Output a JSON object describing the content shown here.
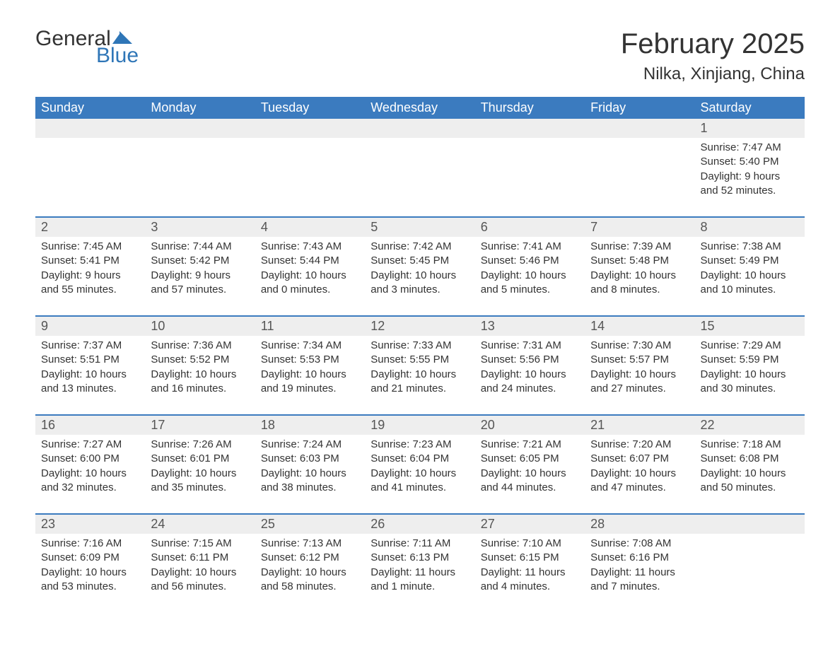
{
  "logo": {
    "text1": "General",
    "text2": "Blue",
    "flag_color": "#2f76b7"
  },
  "title": "February 2025",
  "location": "Nilka, Xinjiang, China",
  "colors": {
    "header_bg": "#3b7bbf",
    "header_text": "#ffffff",
    "daynum_bg": "#eeeeee",
    "rule": "#3b7bbf",
    "text": "#333333",
    "logo_blue": "#2f76b7"
  },
  "day_headers": [
    "Sunday",
    "Monday",
    "Tuesday",
    "Wednesday",
    "Thursday",
    "Friday",
    "Saturday"
  ],
  "weeks": [
    [
      null,
      null,
      null,
      null,
      null,
      null,
      {
        "n": "1",
        "sunrise": "7:47 AM",
        "sunset": "5:40 PM",
        "daylight": "9 hours and 52 minutes."
      }
    ],
    [
      {
        "n": "2",
        "sunrise": "7:45 AM",
        "sunset": "5:41 PM",
        "daylight": "9 hours and 55 minutes."
      },
      {
        "n": "3",
        "sunrise": "7:44 AM",
        "sunset": "5:42 PM",
        "daylight": "9 hours and 57 minutes."
      },
      {
        "n": "4",
        "sunrise": "7:43 AM",
        "sunset": "5:44 PM",
        "daylight": "10 hours and 0 minutes."
      },
      {
        "n": "5",
        "sunrise": "7:42 AM",
        "sunset": "5:45 PM",
        "daylight": "10 hours and 3 minutes."
      },
      {
        "n": "6",
        "sunrise": "7:41 AM",
        "sunset": "5:46 PM",
        "daylight": "10 hours and 5 minutes."
      },
      {
        "n": "7",
        "sunrise": "7:39 AM",
        "sunset": "5:48 PM",
        "daylight": "10 hours and 8 minutes."
      },
      {
        "n": "8",
        "sunrise": "7:38 AM",
        "sunset": "5:49 PM",
        "daylight": "10 hours and 10 minutes."
      }
    ],
    [
      {
        "n": "9",
        "sunrise": "7:37 AM",
        "sunset": "5:51 PM",
        "daylight": "10 hours and 13 minutes."
      },
      {
        "n": "10",
        "sunrise": "7:36 AM",
        "sunset": "5:52 PM",
        "daylight": "10 hours and 16 minutes."
      },
      {
        "n": "11",
        "sunrise": "7:34 AM",
        "sunset": "5:53 PM",
        "daylight": "10 hours and 19 minutes."
      },
      {
        "n": "12",
        "sunrise": "7:33 AM",
        "sunset": "5:55 PM",
        "daylight": "10 hours and 21 minutes."
      },
      {
        "n": "13",
        "sunrise": "7:31 AM",
        "sunset": "5:56 PM",
        "daylight": "10 hours and 24 minutes."
      },
      {
        "n": "14",
        "sunrise": "7:30 AM",
        "sunset": "5:57 PM",
        "daylight": "10 hours and 27 minutes."
      },
      {
        "n": "15",
        "sunrise": "7:29 AM",
        "sunset": "5:59 PM",
        "daylight": "10 hours and 30 minutes."
      }
    ],
    [
      {
        "n": "16",
        "sunrise": "7:27 AM",
        "sunset": "6:00 PM",
        "daylight": "10 hours and 32 minutes."
      },
      {
        "n": "17",
        "sunrise": "7:26 AM",
        "sunset": "6:01 PM",
        "daylight": "10 hours and 35 minutes."
      },
      {
        "n": "18",
        "sunrise": "7:24 AM",
        "sunset": "6:03 PM",
        "daylight": "10 hours and 38 minutes."
      },
      {
        "n": "19",
        "sunrise": "7:23 AM",
        "sunset": "6:04 PM",
        "daylight": "10 hours and 41 minutes."
      },
      {
        "n": "20",
        "sunrise": "7:21 AM",
        "sunset": "6:05 PM",
        "daylight": "10 hours and 44 minutes."
      },
      {
        "n": "21",
        "sunrise": "7:20 AM",
        "sunset": "6:07 PM",
        "daylight": "10 hours and 47 minutes."
      },
      {
        "n": "22",
        "sunrise": "7:18 AM",
        "sunset": "6:08 PM",
        "daylight": "10 hours and 50 minutes."
      }
    ],
    [
      {
        "n": "23",
        "sunrise": "7:16 AM",
        "sunset": "6:09 PM",
        "daylight": "10 hours and 53 minutes."
      },
      {
        "n": "24",
        "sunrise": "7:15 AM",
        "sunset": "6:11 PM",
        "daylight": "10 hours and 56 minutes."
      },
      {
        "n": "25",
        "sunrise": "7:13 AM",
        "sunset": "6:12 PM",
        "daylight": "10 hours and 58 minutes."
      },
      {
        "n": "26",
        "sunrise": "7:11 AM",
        "sunset": "6:13 PM",
        "daylight": "11 hours and 1 minute."
      },
      {
        "n": "27",
        "sunrise": "7:10 AM",
        "sunset": "6:15 PM",
        "daylight": "11 hours and 4 minutes."
      },
      {
        "n": "28",
        "sunrise": "7:08 AM",
        "sunset": "6:16 PM",
        "daylight": "11 hours and 7 minutes."
      },
      null
    ]
  ],
  "labels": {
    "sunrise": "Sunrise: ",
    "sunset": "Sunset: ",
    "daylight": "Daylight: "
  }
}
